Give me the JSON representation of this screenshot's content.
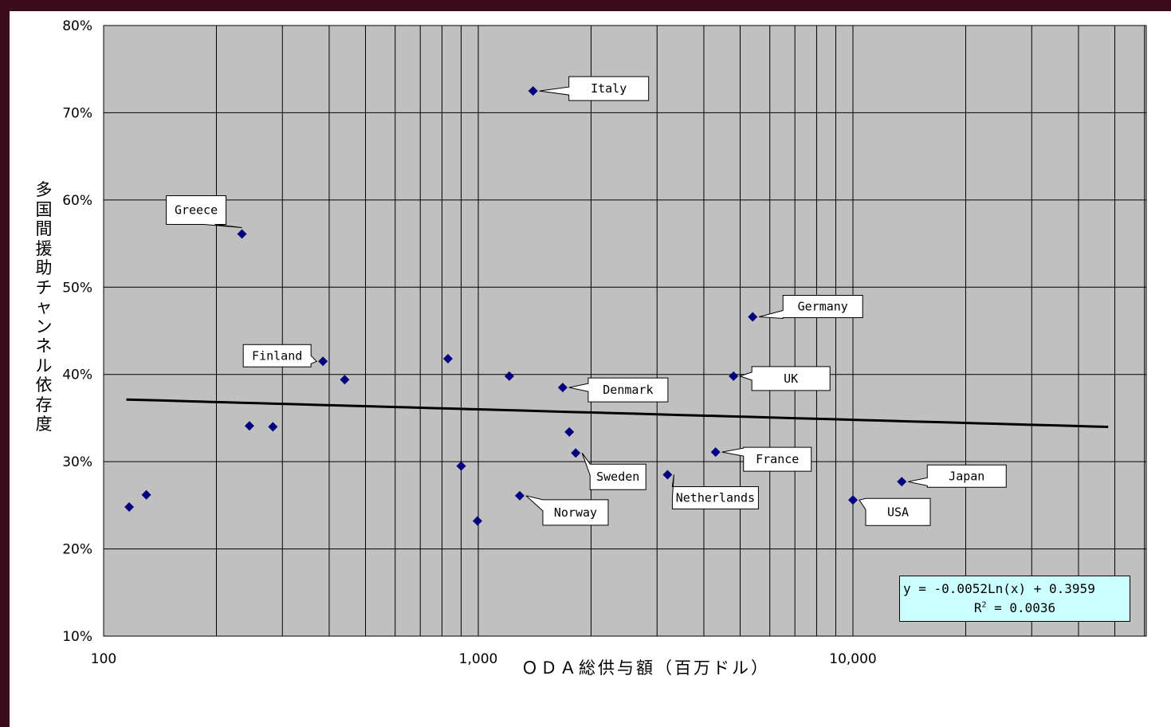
{
  "chart_data": {
    "type": "scatter",
    "title": "",
    "xlabel": "ＯＤＡ総供与額（百万ドル）",
    "ylabel": "多国間援助チャンネル依存度",
    "x_scale": "log",
    "xlim": [
      100,
      60000
    ],
    "ylim": [
      0.1,
      0.8
    ],
    "grid": true,
    "x_ticks": [
      {
        "value": 100,
        "label": "100"
      },
      {
        "value": 1000,
        "label": "1,000"
      },
      {
        "value": 10000,
        "label": "10,000"
      }
    ],
    "y_ticks": [
      {
        "value": 0.1,
        "label": "10%"
      },
      {
        "value": 0.2,
        "label": "20%"
      },
      {
        "value": 0.3,
        "label": "30%"
      },
      {
        "value": 0.4,
        "label": "40%"
      },
      {
        "value": 0.5,
        "label": "50%"
      },
      {
        "value": 0.6,
        "label": "60%"
      },
      {
        "value": 0.7,
        "label": "70%"
      },
      {
        "value": 0.8,
        "label": "80%"
      }
    ],
    "points": [
      {
        "x": 117,
        "y": 0.248,
        "label": ""
      },
      {
        "x": 130,
        "y": 0.262,
        "label": ""
      },
      {
        "x": 234,
        "y": 0.561,
        "label": "Greece"
      },
      {
        "x": 245,
        "y": 0.341,
        "label": ""
      },
      {
        "x": 283,
        "y": 0.34,
        "label": ""
      },
      {
        "x": 385,
        "y": 0.415,
        "label": "Finland"
      },
      {
        "x": 440,
        "y": 0.394,
        "label": ""
      },
      {
        "x": 830,
        "y": 0.418,
        "label": ""
      },
      {
        "x": 900,
        "y": 0.295,
        "label": ""
      },
      {
        "x": 995,
        "y": 0.232,
        "label": ""
      },
      {
        "x": 1210,
        "y": 0.398,
        "label": ""
      },
      {
        "x": 1290,
        "y": 0.261,
        "label": "Norway"
      },
      {
        "x": 1400,
        "y": 0.725,
        "label": "Italy"
      },
      {
        "x": 1680,
        "y": 0.385,
        "label": "Denmark"
      },
      {
        "x": 1750,
        "y": 0.334,
        "label": ""
      },
      {
        "x": 1820,
        "y": 0.31,
        "label": "Sweden"
      },
      {
        "x": 3200,
        "y": 0.285,
        "label": "Netherlands"
      },
      {
        "x": 4300,
        "y": 0.311,
        "label": "France"
      },
      {
        "x": 4800,
        "y": 0.398,
        "label": "UK"
      },
      {
        "x": 5400,
        "y": 0.466,
        "label": "Germany"
      },
      {
        "x": 10000,
        "y": 0.256,
        "label": "USA"
      },
      {
        "x": 13500,
        "y": 0.277,
        "label": "Japan"
      }
    ],
    "trendline": {
      "type": "logarithmic",
      "a": -0.0052,
      "b": 0.3959,
      "x_range": [
        115,
        48000
      ],
      "equation_text": "y = -0.0052Ln(x) + 0.3959",
      "r2_label": "R",
      "r2_sup": "2",
      "r2_value_text": " = 0.0036"
    },
    "colors": {
      "plot_background": "#c0c0c0",
      "marker": "#00007f",
      "trendline": "#000000",
      "gridline": "#000000",
      "equation_box": "#ccffff",
      "frame": "#3b0d1c"
    }
  }
}
